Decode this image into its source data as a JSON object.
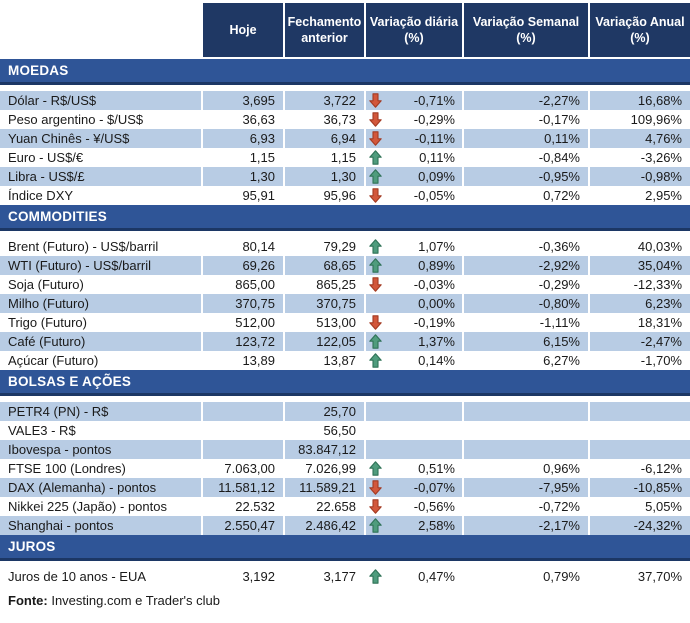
{
  "header": {
    "columns": [
      "",
      "Hoje",
      "Fechamento anterior",
      "Variação diária (%)",
      "Variação Semanal (%)",
      "Variação Anual (%)"
    ]
  },
  "colors": {
    "header_bg": "#1F3864",
    "section_bg": "#2F5597",
    "section_border": "#1C3765",
    "shaded_row_bg": "#B8CCE4",
    "arrow_up_fill": "#4F9C7D",
    "arrow_up_stroke": "#2F7257",
    "arrow_down_fill": "#D2573B",
    "arrow_down_stroke": "#A33A22"
  },
  "sections": [
    {
      "title": "MOEDAS",
      "first_row_shaded": true,
      "rows": [
        {
          "name": "Dólar - R$/US$",
          "hoje": "3,695",
          "fechamento": "3,722",
          "arrow": "down",
          "diaria": "-0,71%",
          "semanal": "-2,27%",
          "anual": "16,68%"
        },
        {
          "name": "Peso argentino - $/US$",
          "hoje": "36,63",
          "fechamento": "36,73",
          "arrow": "down",
          "diaria": "-0,29%",
          "semanal": "-0,17%",
          "anual": "109,96%"
        },
        {
          "name": "Yuan Chinês - ¥/US$",
          "hoje": "6,93",
          "fechamento": "6,94",
          "arrow": "down",
          "diaria": "-0,11%",
          "semanal": "0,11%",
          "anual": "4,76%"
        },
        {
          "name": "Euro - US$/€",
          "hoje": "1,15",
          "fechamento": "1,15",
          "arrow": "up",
          "diaria": "0,11%",
          "semanal": "-0,84%",
          "anual": "-3,26%"
        },
        {
          "name": "Libra - US$/£",
          "hoje": "1,30",
          "fechamento": "1,30",
          "arrow": "up",
          "diaria": "0,09%",
          "semanal": "-0,95%",
          "anual": "-0,98%"
        },
        {
          "name": "Índice DXY",
          "hoje": "95,91",
          "fechamento": "95,96",
          "arrow": "down",
          "diaria": "-0,05%",
          "semanal": "0,72%",
          "anual": "2,95%"
        }
      ]
    },
    {
      "title": "COMMODITIES",
      "first_row_shaded": false,
      "rows": [
        {
          "name": "Brent (Futuro) - US$/barril",
          "hoje": "80,14",
          "fechamento": "79,29",
          "arrow": "up",
          "diaria": "1,07%",
          "semanal": "-0,36%",
          "anual": "40,03%"
        },
        {
          "name": "WTI (Futuro) - US$/barril",
          "hoje": "69,26",
          "fechamento": "68,65",
          "arrow": "up",
          "diaria": "0,89%",
          "semanal": "-2,92%",
          "anual": "35,04%"
        },
        {
          "name": "Soja (Futuro)",
          "hoje": "865,00",
          "fechamento": "865,25",
          "arrow": "down",
          "diaria": "-0,03%",
          "semanal": "-0,29%",
          "anual": "-12,33%"
        },
        {
          "name": "Milho (Futuro)",
          "hoje": "370,75",
          "fechamento": "370,75",
          "arrow": "none",
          "diaria": "0,00%",
          "semanal": "-0,80%",
          "anual": "6,23%"
        },
        {
          "name": "Trigo (Futuro)",
          "hoje": "512,00",
          "fechamento": "513,00",
          "arrow": "down",
          "diaria": "-0,19%",
          "semanal": "-1,11%",
          "anual": "18,31%"
        },
        {
          "name": "Café (Futuro)",
          "hoje": "123,72",
          "fechamento": "122,05",
          "arrow": "up",
          "diaria": "1,37%",
          "semanal": "6,15%",
          "anual": "-2,47%"
        },
        {
          "name": "Açúcar (Futuro)",
          "hoje": "13,89",
          "fechamento": "13,87",
          "arrow": "up",
          "diaria": "0,14%",
          "semanal": "6,27%",
          "anual": "-1,70%"
        }
      ]
    },
    {
      "title": "BOLSAS E AÇÕES",
      "first_row_shaded": true,
      "rows": [
        {
          "name": "PETR4 (PN) - R$",
          "hoje": "",
          "fechamento": "25,70",
          "arrow": "none",
          "diaria": "",
          "semanal": "",
          "anual": ""
        },
        {
          "name": "VALE3 - R$",
          "hoje": "",
          "fechamento": "56,50",
          "arrow": "none",
          "diaria": "",
          "semanal": "",
          "anual": ""
        },
        {
          "name": "Ibovespa - pontos",
          "hoje": "",
          "fechamento": "83.847,12",
          "arrow": "none",
          "diaria": "",
          "semanal": "",
          "anual": ""
        },
        {
          "name": "FTSE 100 (Londres)",
          "hoje": "7.063,00",
          "fechamento": "7.026,99",
          "arrow": "up",
          "diaria": "0,51%",
          "semanal": "0,96%",
          "anual": "-6,12%"
        },
        {
          "name": "DAX (Alemanha) - pontos",
          "hoje": "11.581,12",
          "fechamento": "11.589,21",
          "arrow": "down",
          "diaria": "-0,07%",
          "semanal": "-7,95%",
          "anual": "-10,85%"
        },
        {
          "name": "Nikkei 225 (Japão) - pontos",
          "hoje": "22.532",
          "fechamento": "22.658",
          "arrow": "down",
          "diaria": "-0,56%",
          "semanal": "-0,72%",
          "anual": "5,05%"
        },
        {
          "name": "Shanghai - pontos",
          "hoje": "2.550,47",
          "fechamento": "2.486,42",
          "arrow": "up",
          "diaria": "2,58%",
          "semanal": "-2,17%",
          "anual": "-24,32%"
        }
      ]
    },
    {
      "title": "JUROS",
      "first_row_shaded": false,
      "rows": [
        {
          "name": "Juros de 10 anos - EUA",
          "hoje": "3,192",
          "fechamento": "3,177",
          "arrow": "up",
          "diaria": "0,47%",
          "semanal": "0,79%",
          "anual": "37,70%"
        }
      ]
    }
  ],
  "footer": {
    "source_label": "Fonte:",
    "source_text": " Investing.com e Trader's club"
  }
}
